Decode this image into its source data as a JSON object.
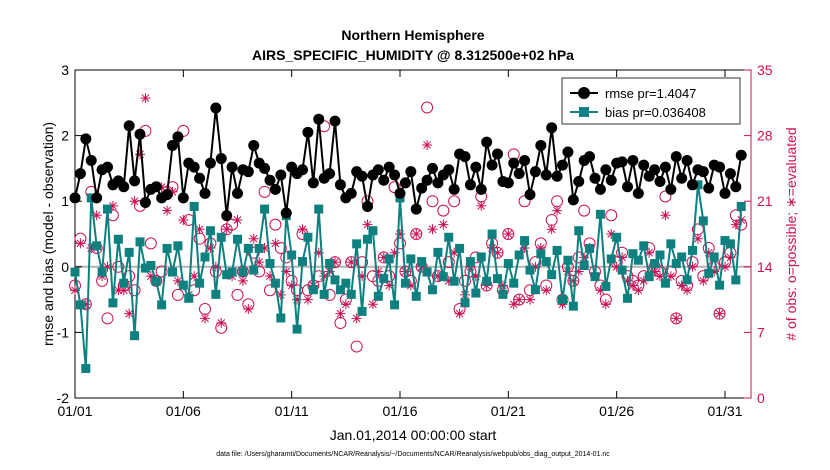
{
  "chart_data": {
    "type": "line",
    "title": "Northern Hemisphere",
    "subtitle": "AIRS_SPECIFIC_HUMIDITY @ 8.312500e+02 hPa",
    "xlabel": "Jan.01,2014 00:00:00 start",
    "ylabel_left": "rmse and bias (model - observation)",
    "ylabel_right": "# of obs: o=possible; ∗=evaluated",
    "footnote": "data file: /Users/gharamti/Documents/NCAR/Reanalysis/~/Documents/NCAR/Reanalysis/webpub/obs_diag_output_2014-01.nc",
    "x_ticks": [
      {
        "day": 1,
        "label": "01/01"
      },
      {
        "day": 6,
        "label": "01/06"
      },
      {
        "day": 11,
        "label": "01/11"
      },
      {
        "day": 16,
        "label": "01/16"
      },
      {
        "day": 21,
        "label": "01/21"
      },
      {
        "day": 26,
        "label": "01/26"
      },
      {
        "day": 31,
        "label": "01/31"
      }
    ],
    "x_range": [
      1,
      32.2
    ],
    "y_left": {
      "range": [
        -2,
        3
      ],
      "ticks": [
        "-2",
        "-1",
        "0",
        "1",
        "2",
        "3"
      ],
      "values": [
        -2,
        -1,
        0,
        1,
        2,
        3
      ]
    },
    "y_right": {
      "range": [
        0,
        35
      ],
      "ticks": [
        "0",
        "7",
        "14",
        "21",
        "28",
        "35"
      ],
      "values": [
        0,
        7,
        14,
        21,
        28,
        35
      ]
    },
    "zero_line": 0,
    "n_points": 124,
    "series": [
      {
        "name": "rmse",
        "legend": "rmse pr=1.4047",
        "color": "#000000",
        "axis": "left",
        "values": [
          1.05,
          1.42,
          1.95,
          1.62,
          1.05,
          1.48,
          1.52,
          1.25,
          1.31,
          1.22,
          2.15,
          1.31,
          2.02,
          0.98,
          1.18,
          1.22,
          1.05,
          1.1,
          1.85,
          1.98,
          1.05,
          1.58,
          1.52,
          1.35,
          1.12,
          1.58,
          2.42,
          1.65,
          0.78,
          1.52,
          1.12,
          1.48,
          1.45,
          1.85,
          1.58,
          1.5,
          1.32,
          1.18,
          1.4,
          0.82,
          1.52,
          1.42,
          1.48,
          2.05,
          1.28,
          2.25,
          1.35,
          1.42,
          2.22,
          1.25,
          1.05,
          1.12,
          1.45,
          1.38,
          0.92,
          1.4,
          1.48,
          1.32,
          1.52,
          1.4,
          1.12,
          1.28,
          1.45,
          0.88,
          1.2,
          1.32,
          1.5,
          1.28,
          1.4,
          1.48,
          1.18,
          1.72,
          1.68,
          1.25,
          1.52,
          1.18,
          1.9,
          1.55,
          1.72,
          1.3,
          1.28,
          1.58,
          1.42,
          1.62,
          1.1,
          1.45,
          1.85,
          1.4,
          2.12,
          1.38,
          1.55,
          1.75,
          1.02,
          1.3,
          1.62,
          1.68,
          1.35,
          1.18,
          1.48,
          1.32,
          1.58,
          1.6,
          1.22,
          1.62,
          1.12,
          1.55,
          1.38,
          1.48,
          1.3,
          1.52,
          1.18,
          1.68,
          1.35,
          1.62,
          1.25,
          1.48,
          1.45,
          1.2,
          1.55,
          1.52,
          1.12,
          1.42,
          1.22,
          1.7
        ]
      },
      {
        "name": "bias",
        "legend": "bias pr=0.036408",
        "color": "#0e8080",
        "axis": "left",
        "values": [
          -0.08,
          -0.58,
          -1.55,
          1.05,
          0.32,
          -0.08,
          0.88,
          -0.55,
          0.42,
          -0.25,
          0.22,
          -1.05,
          0.38,
          -0.02,
          0.02,
          -0.22,
          -0.58,
          0.28,
          -0.08,
          0.32,
          -0.28,
          -0.48,
          0.92,
          -0.25,
          0.15,
          0.55,
          -0.42,
          0.45,
          -0.12,
          -0.08,
          0.42,
          -0.08,
          0.28,
          -0.05,
          0.28,
          0.88,
          0.05,
          -0.25,
          -0.78,
          0.78,
          0.18,
          -0.95,
          0.08,
          0.45,
          -0.35,
          0.88,
          -0.42,
          0.05,
          -0.2,
          -0.35,
          -0.25,
          -0.42,
          0.35,
          -0.68,
          0.42,
          0.55,
          -0.45,
          -0.18,
          0.12,
          -0.58,
          1.05,
          -0.25,
          0.12,
          -0.45,
          0.08,
          -0.08,
          -0.35,
          0.22,
          -0.15,
          0.45,
          -0.22,
          0.28,
          -0.55,
          0.08,
          -0.4,
          0.15,
          -0.22,
          0.5,
          -0.18,
          -0.42,
          0.05,
          -0.25,
          0.18,
          0.4,
          -0.05,
          -0.35,
          0.2,
          0.08,
          -0.12,
          0.25,
          -0.5,
          0.1,
          -0.6,
          0.55,
          0.02,
          0.28,
          -0.15,
          0.8,
          -0.3,
          0.12,
          0.45,
          -0.05,
          -0.48,
          0.2,
          0.1,
          0.32,
          -0.15,
          0.05,
          0.18,
          -0.25,
          0.35,
          0.05,
          0.15,
          -0.2,
          0.25,
          1.25,
          0.7,
          -0.1,
          0.15,
          -0.28,
          0.4,
          0.35,
          -0.2,
          0.92
        ]
      },
      {
        "name": "possible",
        "marker": "circle",
        "color": "#cc1155",
        "axis": "right",
        "values": [
          12.0,
          17.0,
          10.0,
          22.0,
          16.0,
          12.5,
          8.5,
          19.5,
          14.0,
          12.0,
          13.0,
          11.5,
          20.5,
          28.5,
          16.5,
          12.5,
          13.5,
          22.0,
          22.5,
          11.0,
          28.5,
          19.0,
          11.5,
          17.0,
          9.5,
          16.5,
          13.5,
          7.5,
          18.0,
          18.5,
          11.0,
          13.5,
          10.0,
          15.5,
          13.5,
          22.0,
          11.5,
          18.5,
          16.0,
          15.0,
          12.5,
          11.5,
          17.5,
          11.5,
          12.0,
          13.0,
          29.0,
          11.0,
          14.5,
          8.0,
          10.5,
          14.5,
          5.5,
          14.5,
          21.0,
          13.0,
          12.5,
          15.0,
          13.0,
          22.5,
          16.5,
          13.5,
          12.5,
          17.5,
          14.0,
          31.0,
          21.0,
          13.0,
          20.0,
          14.5,
          21.0,
          9.5,
          12.5,
          13.5,
          15.0,
          21.5,
          12.0,
          16.5,
          15.5,
          11.5,
          17.5,
          26.0,
          10.5,
          21.0,
          11.5,
          14.5,
          16.5,
          12.0,
          19.0,
          21.0,
          10.5,
          14.0,
          12.5,
          15.0,
          20.0,
          16.5,
          13.5,
          12.0,
          10.5,
          19.5,
          14.5,
          15.5,
          13.0,
          12.5,
          12.0,
          13.0,
          16.0,
          14.0,
          13.5,
          21.5,
          13.5,
          8.5,
          12.5,
          12.0,
          14.5,
          18.0,
          13.0,
          16.0,
          14.0,
          9.0,
          14.5,
          15.5,
          19.5,
          18.5
        ]
      },
      {
        "name": "evaluated",
        "marker": "asterisk",
        "color": "#cc1155",
        "axis": "right",
        "values": [
          11.5,
          16.5,
          10.0,
          16.0,
          19.5,
          13.0,
          14.0,
          20.5,
          11.5,
          11.5,
          9.0,
          21.0,
          26.0,
          32.0,
          13.0,
          12.5,
          22.5,
          20.0,
          22.0,
          12.5,
          19.0,
          11.0,
          13.0,
          18.0,
          8.5,
          16.0,
          14.0,
          8.0,
          18.0,
          13.0,
          19.0,
          12.5,
          9.5,
          17.0,
          14.5,
          16.0,
          13.0,
          16.5,
          11.0,
          13.5,
          12.0,
          10.5,
          18.0,
          10.5,
          12.0,
          15.5,
          13.0,
          13.5,
          14.5,
          9.0,
          10.0,
          14.5,
          8.5,
          13.0,
          18.5,
          10.0,
          13.5,
          15.0,
          12.0,
          15.5,
          17.5,
          13.5,
          12.0,
          17.5,
          14.0,
          27.0,
          18.0,
          13.0,
          18.5,
          12.5,
          15.5,
          9.0,
          11.0,
          14.0,
          13.0,
          20.5,
          12.0,
          16.0,
          15.5,
          12.0,
          17.5,
          10.0,
          10.5,
          16.0,
          10.5,
          14.0,
          16.0,
          11.5,
          18.0,
          20.0,
          10.0,
          13.5,
          12.5,
          13.5,
          15.0,
          16.0,
          13.0,
          11.5,
          10.0,
          17.5,
          14.0,
          15.0,
          12.5,
          12.0,
          11.5,
          12.5,
          15.5,
          13.5,
          13.0,
          19.5,
          13.0,
          8.5,
          12.0,
          11.5,
          14.0,
          17.0,
          12.5,
          15.5,
          13.5,
          9.0,
          14.0,
          15.0,
          18.5,
          19.0
        ]
      }
    ]
  }
}
